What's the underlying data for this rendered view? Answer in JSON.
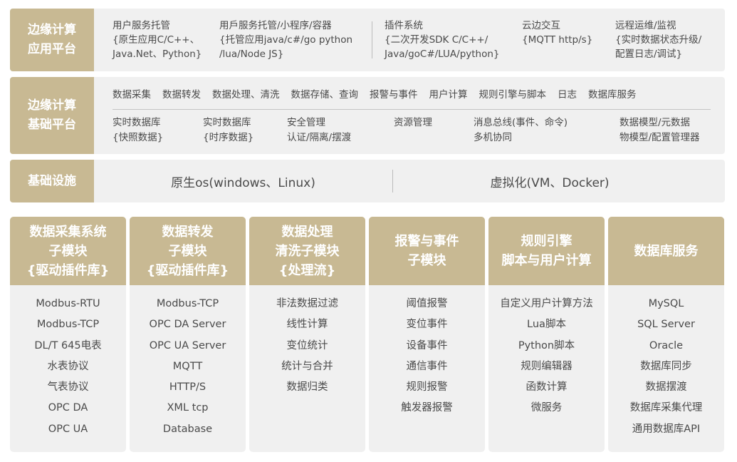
{
  "app_platform": {
    "label": [
      "边缘计算",
      "应用平台"
    ],
    "columns": [
      [
        "用户服务托管",
        "{原生应用C/C++、",
        "Java.Net、Python}"
      ],
      [
        "用戶服务托管/小程序/容器",
        "{托管应用java/c#/go python",
        "/lua/Node JS}"
      ],
      [
        "插件系统",
        "{二次开发SDK C/C++/",
        "Java/goC#/LUA/python}"
      ],
      [
        "云边交互",
        "{MQTT http/s}"
      ],
      [
        "远程运维/监视",
        "{实时数据状态升级/",
        "配置日志/调试}"
      ]
    ]
  },
  "base_platform": {
    "label": [
      "边缘计算",
      "基础平台"
    ],
    "top_items": [
      "数据采集",
      "数据转发",
      "数据处理、清洗",
      "数据存储、查询",
      "报警与事件",
      "用户计算",
      "规则引擎与脚本",
      "日志",
      "数据库服务"
    ],
    "columns": [
      [
        "实时数据库",
        "{快照数据}"
      ],
      [
        "实时数据库",
        "{时序数据}"
      ],
      [
        "安全管理",
        "认证/隔离/摆渡"
      ],
      [
        "资源管理"
      ],
      [
        "消息总线(事件、命令)",
        "多机协同"
      ],
      [
        "数据模型/元数据",
        "物模型/配置管理器"
      ]
    ]
  },
  "infrastructure": {
    "label": "基础设施",
    "left": "原生os(windows、Linux)",
    "right": "虚拟化(VM、Docker)"
  },
  "modules": [
    {
      "title": [
        "数据采集系统",
        "子模块",
        "{驱动插件库}"
      ],
      "items": [
        "Modbus-RTU",
        "Modbus-TCP",
        "DL/T 645电表",
        "水表协议",
        "气表协议",
        "OPC DA",
        "OPC UA"
      ]
    },
    {
      "title": [
        "数据转发",
        "子模块",
        "{驱动插件库}"
      ],
      "items": [
        "Modbus-TCP",
        "OPC DA Server",
        "OPC UA Server",
        "MQTT",
        "HTTP/S",
        "XML tcp",
        "Database"
      ]
    },
    {
      "title": [
        "数据处理",
        "清洗子模块",
        "{处理流}"
      ],
      "items": [
        "非法数据过滤",
        "线性计算",
        "变位统计",
        "统计与合并",
        "数据归类"
      ]
    },
    {
      "title": [
        "报警与事件",
        "子模块"
      ],
      "items": [
        "阈值报警",
        "变位事件",
        "设备事件",
        "通信事件",
        "规则报警",
        "触发器报警"
      ]
    },
    {
      "title": [
        "规则引擎",
        "脚本与用户计算"
      ],
      "items": [
        "自定义用户计算方法",
        "Lua脚本",
        "Python脚本",
        "规则编辑器",
        "函数计算",
        "微服务"
      ]
    },
    {
      "title": [
        "数据库服务"
      ],
      "items": [
        "MySQL",
        "SQL Server",
        "Oracle",
        "数据库同步",
        "数据摆渡",
        "数据库采集代理",
        "通用数据库API"
      ]
    }
  ],
  "colors": {
    "accent": "#c8b993",
    "panel": "#f0f0f0",
    "text": "#4a4a4a"
  }
}
